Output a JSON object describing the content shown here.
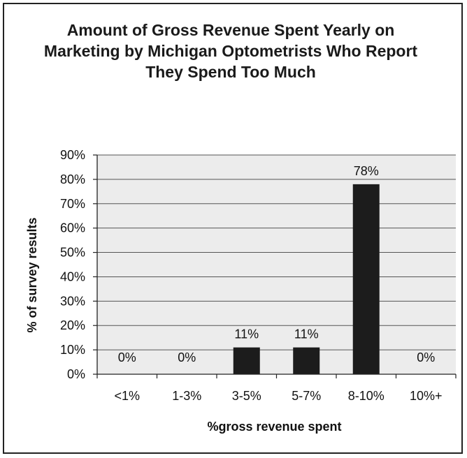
{
  "chart_data": {
    "type": "bar",
    "title": "Amount of Gross Revenue Spent Yearly on Marketing by Michigan Optometrists Who Report They Spend Too Much",
    "categories": [
      "<1%",
      "1-3%",
      "3-5%",
      "5-7%",
      "8-10%",
      "10%+"
    ],
    "values": [
      0,
      0,
      11,
      11,
      78,
      0
    ],
    "data_labels": [
      "0%",
      "0%",
      "11%",
      "11%",
      "78%",
      "0%"
    ],
    "xlabel": "%gross revenue spent",
    "ylabel": "% of survey results",
    "ylim": [
      0,
      90
    ],
    "yticks": [
      "0%",
      "10%",
      "20%",
      "30%",
      "40%",
      "50%",
      "60%",
      "70%",
      "80%",
      "90%"
    ],
    "grid": true,
    "legend": "none",
    "colors": {
      "bar": "#1c1c1c",
      "plot_bg": "#ececec",
      "grid": "#555555"
    }
  }
}
